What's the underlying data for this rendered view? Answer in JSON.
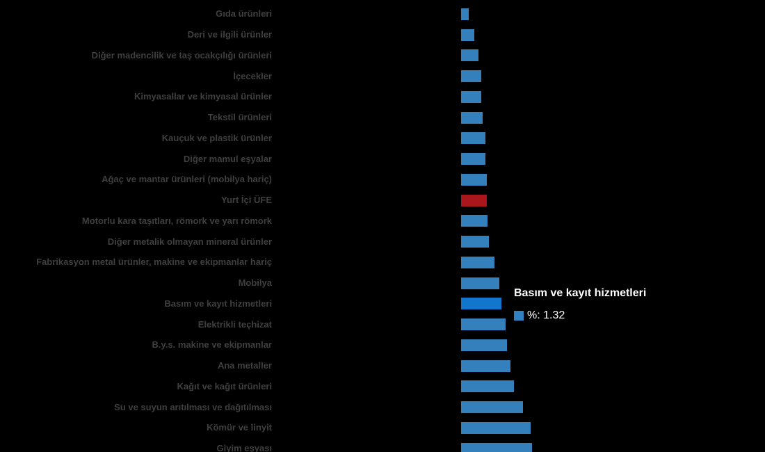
{
  "chart_data": {
    "type": "bar",
    "orientation": "horizontal",
    "title": "",
    "xlabel": "",
    "ylabel": "",
    "unit": "%",
    "grid": false,
    "legend_position": "none",
    "colors": {
      "bar": "#3380bd",
      "bar_highlight": "#1276cd",
      "bar_reference": "#a9161b",
      "label_text": "#3f3f3f",
      "background": "#000000",
      "tooltip_text": "#ffffff"
    },
    "categories": [
      "Gıda ürünleri",
      "Deri ve ilgili ürünler",
      "Diğer madencilik ve taş ocakçılığı ürünleri",
      "İçecekler",
      "Kimyasallar ve kimyasal ürünler",
      "Tekstil ürünleri",
      "Kauçuk ve plastik ürünler",
      "Diğer mamul eşyalar",
      "Ağaç ve mantar ürünleri (mobilya hariç)",
      "Yurt İçi ÜFE",
      "Motorlu kara taşıtları, römork ve yarı römork",
      "Diğer metalik olmayan mineral ürünler",
      "Fabrikasyon metal ürünler, makine ve ekipmanlar hariç",
      "Mobilya",
      "Basım ve kayıt hizmetleri",
      "Elektrikli teçhizat",
      "B.y.s. makine ve ekipmanlar",
      "Ana metaller",
      "Kağıt ve kağıt ürünleri",
      "Su ve suyun arıtılması ve dağıtılması",
      "Kömür ve linyit",
      "Giyim eşyası"
    ],
    "values": [
      0.24,
      0.43,
      0.56,
      0.66,
      0.66,
      0.7,
      0.79,
      0.79,
      0.84,
      0.84,
      0.86,
      0.92,
      1.1,
      1.25,
      1.32,
      1.46,
      1.51,
      1.63,
      1.74,
      2.03,
      2.29,
      2.33
    ],
    "roles": [
      "default",
      "default",
      "default",
      "default",
      "default",
      "default",
      "default",
      "default",
      "default",
      "reference",
      "default",
      "default",
      "default",
      "default",
      "highlight",
      "default",
      "default",
      "default",
      "default",
      "default",
      "default",
      "default"
    ],
    "reference_category": "Yurt İçi ÜFE",
    "highlight_category": "Basım ve kayıt hizmetleri"
  },
  "tooltip": {
    "title": "Basım ve kayıt hizmetleri",
    "series_label": "%",
    "value": "1.32",
    "value_line": "%: 1.32",
    "swatch_color": "#3181c2"
  }
}
